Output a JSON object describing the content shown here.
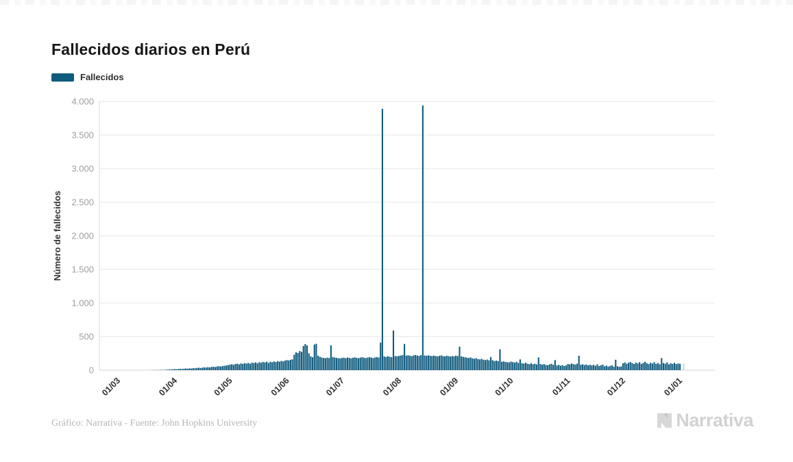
{
  "title": "Fallecidos diarios en Perú",
  "legend": {
    "label": "Fallecidos",
    "color": "#0f5b7e"
  },
  "footer": {
    "credit": "Gráfico: Narrativa - Fuente: John Hopkins University"
  },
  "brand": {
    "name": "Narrativa",
    "logo_icon": "narrativa-n-mark",
    "color": "#d2d2d2"
  },
  "chart_data": {
    "type": "bar",
    "title": "Fallecidos diarios en Perú",
    "xlabel": "",
    "ylabel": "Número de fallecidos",
    "ylim": [
      0,
      4000
    ],
    "grid": true,
    "legend_position": "top-left",
    "bar_color": "#0f5b7e",
    "ytick_labels": [
      "0",
      "500",
      "1.000",
      "1.500",
      "2.000",
      "2.500",
      "3.000",
      "3.500",
      "4.000"
    ],
    "ytick_values": [
      0,
      500,
      1000,
      1500,
      2000,
      2500,
      3000,
      3500,
      4000
    ],
    "xtick_labels": [
      "01/03",
      "01/04",
      "01/05",
      "01/06",
      "01/07",
      "01/08",
      "01/09",
      "01/10",
      "01/11",
      "01/12",
      "01/01"
    ],
    "xtick_day_offsets": [
      0,
      31,
      61,
      92,
      122,
      153,
      184,
      214,
      245,
      275,
      306
    ],
    "series": [
      {
        "name": "Fallecidos",
        "start_date": "01/03/2020",
        "frequency": "daily",
        "values": [
          0,
          0,
          0,
          0,
          0,
          0,
          0,
          0,
          0,
          0,
          0,
          0,
          0,
          0,
          0,
          0,
          0,
          0,
          1,
          2,
          2,
          3,
          2,
          4,
          5,
          3,
          6,
          8,
          9,
          11,
          14,
          16,
          14,
          18,
          20,
          17,
          22,
          25,
          21,
          27,
          24,
          30,
          28,
          33,
          36,
          31,
          38,
          42,
          39,
          45,
          41,
          48,
          52,
          47,
          55,
          58,
          54,
          61,
          65,
          70,
          76,
          82,
          88,
          79,
          92,
          96,
          86,
          100,
          93,
          104,
          98,
          108,
          95,
          112,
          106,
          116,
          102,
          118,
          110,
          122,
          115,
          126,
          108,
          124,
          118,
          130,
          121,
          134,
          126,
          138,
          130,
          142,
          150,
          144,
          155,
          160,
          230,
          265,
          255,
          285,
          272,
          360,
          388,
          368,
          250,
          205,
          192,
          382,
          392,
          215,
          198,
          188,
          182,
          178,
          186,
          180,
          370,
          196,
          188,
          183,
          178,
          175,
          182,
          186,
          178,
          188,
          183,
          176,
          185,
          190,
          184,
          178,
          187,
          193,
          185,
          180,
          188,
          194,
          187,
          181,
          189,
          195,
          188,
          410,
          3890,
          205,
          196,
          207,
          199,
          193,
          590,
          210,
          206,
          212,
          218,
          225,
          390,
          216,
          222,
          215,
          208,
          220,
          226,
          218,
          212,
          224,
          3940,
          219,
          214,
          221,
          215,
          209,
          217,
          211,
          205,
          213,
          219,
          210,
          206,
          214,
          208,
          202,
          210,
          204,
          216,
          210,
          350,
          205,
          198,
          192,
          186,
          181,
          189,
          176,
          170,
          178,
          166,
          160,
          168,
          156,
          150,
          158,
          146,
          195,
          148,
          136,
          143,
          133,
          310,
          125,
          130,
          122,
          118,
          115,
          128,
          120,
          112,
          124,
          108,
          160,
          104,
          98,
          110,
          96,
          90,
          102,
          88,
          96,
          84,
          190,
          92,
          82,
          90,
          78,
          74,
          86,
          94,
          80,
          150,
          70,
          78,
          66,
          74,
          62,
          70,
          92,
          86,
          98,
          90,
          84,
          96,
          215,
          80,
          88,
          76,
          84,
          72,
          80,
          70,
          78,
          66,
          86,
          62,
          74,
          82,
          58,
          68,
          54,
          64,
          70,
          52,
          155,
          58,
          50,
          56,
          102,
          115,
          95,
          110,
          122,
          105,
          92,
          112,
          100,
          118,
          94,
          108,
          125,
          102,
          90,
          111,
          98,
          120,
          93,
          105,
          88,
          180,
          106,
          96,
          115,
          86,
          103,
          94,
          110,
          90,
          100,
          95
        ]
      }
    ],
    "notable_points": [
      {
        "date": "23/07/2020",
        "value": 3890
      },
      {
        "date": "14/08/2020",
        "value": 3940
      }
    ],
    "trailing_partial_bar": {
      "days_after_start": 308,
      "value": 100,
      "color": "#c9d6df"
    }
  }
}
